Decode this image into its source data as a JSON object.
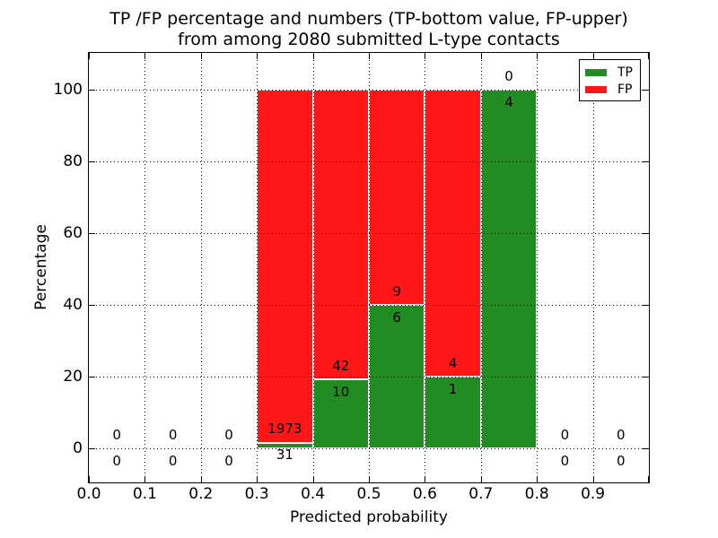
{
  "figure": {
    "title_line1": "TP /FP percentage and numbers (TP-bottom value, FP-upper)",
    "title_line2": "from among 2080 submitted L-type contacts"
  },
  "chart_data": {
    "type": "bar",
    "stacked": true,
    "title": "TP /FP percentage and numbers (TP-bottom value, FP-upper)\nfrom among 2080 submitted L-type contacts",
    "xlabel": "Predicted probability",
    "ylabel": "Percentage",
    "total_contacts": 2080,
    "xlim": [
      0.0,
      1.0
    ],
    "ylim_pct": [
      -9.75,
      110.0
    ],
    "xtick_labels": [
      "0.0",
      "0.1",
      "0.2",
      "0.3",
      "0.4",
      "0.5",
      "0.6",
      "0.7",
      "0.8",
      "0.9"
    ],
    "ytick_values": [
      0,
      20,
      40,
      60,
      80,
      100
    ],
    "ytick_labels": [
      "0",
      "20",
      "40",
      "60",
      "80",
      "100"
    ],
    "grid": "dotted",
    "legend_position": "upper right",
    "legend": [
      {
        "label": "TP",
        "color": "#228b22"
      },
      {
        "label": "FP",
        "color": "#ff1616"
      }
    ],
    "colors": {
      "tp": "#228b22",
      "fp": "#ff1616",
      "edge": "#ffffff"
    },
    "bins": [
      {
        "x_range": [
          0.0,
          0.1
        ],
        "tp_count": 0,
        "fp_count": 0,
        "tp_pct": 0,
        "fp_pct": 0
      },
      {
        "x_range": [
          0.1,
          0.2
        ],
        "tp_count": 0,
        "fp_count": 0,
        "tp_pct": 0,
        "fp_pct": 0
      },
      {
        "x_range": [
          0.2,
          0.3
        ],
        "tp_count": 0,
        "fp_count": 0,
        "tp_pct": 0,
        "fp_pct": 0
      },
      {
        "x_range": [
          0.3,
          0.4
        ],
        "tp_count": 31,
        "fp_count": 1973,
        "tp_pct": 1.547,
        "fp_pct": 98.453
      },
      {
        "x_range": [
          0.4,
          0.5
        ],
        "tp_count": 10,
        "fp_count": 42,
        "tp_pct": 19.231,
        "fp_pct": 80.769
      },
      {
        "x_range": [
          0.5,
          0.6
        ],
        "tp_count": 6,
        "fp_count": 9,
        "tp_pct": 40.0,
        "fp_pct": 60.0
      },
      {
        "x_range": [
          0.6,
          0.7
        ],
        "tp_count": 1,
        "fp_count": 4,
        "tp_pct": 20.0,
        "fp_pct": 80.0
      },
      {
        "x_range": [
          0.7,
          0.8
        ],
        "tp_count": 4,
        "fp_count": 0,
        "tp_pct": 100.0,
        "fp_pct": 0.0
      },
      {
        "x_range": [
          0.8,
          0.9
        ],
        "tp_count": 0,
        "fp_count": 0,
        "tp_pct": 0,
        "fp_pct": 0
      },
      {
        "x_range": [
          0.9,
          1.0
        ],
        "tp_count": 0,
        "fp_count": 0,
        "tp_pct": 0,
        "fp_pct": 0
      }
    ]
  }
}
